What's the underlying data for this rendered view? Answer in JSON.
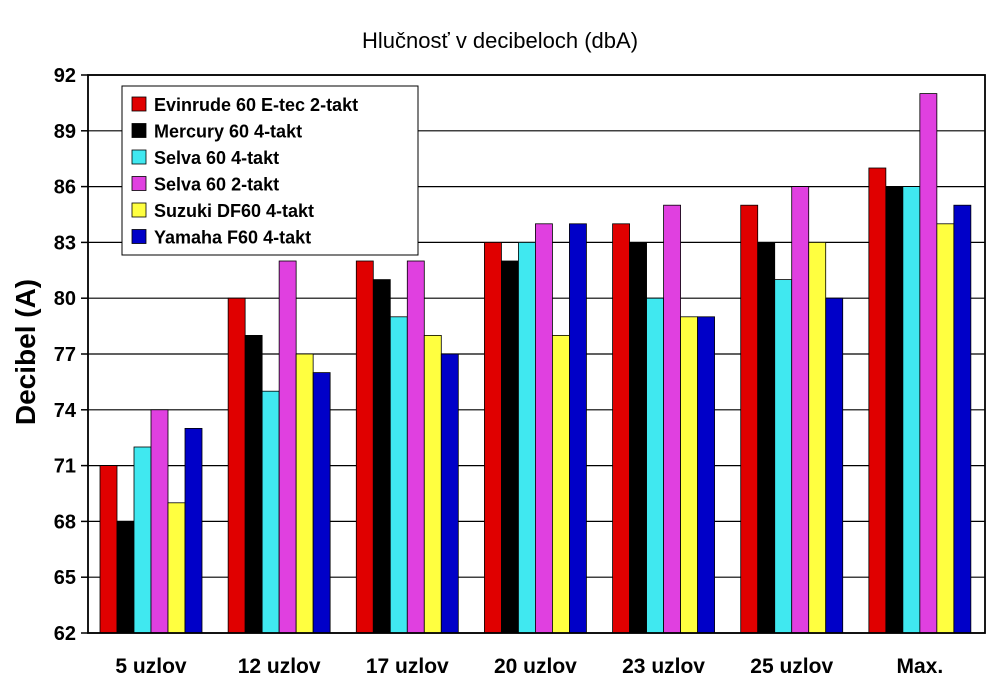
{
  "chart_data": {
    "type": "bar",
    "title": "Hlučnosť v decibeloch (dbA)",
    "ylabel": "Decibel (A)",
    "xlabel": "",
    "ylim": [
      62,
      92
    ],
    "yticks": [
      62,
      65,
      68,
      71,
      74,
      77,
      80,
      83,
      86,
      89,
      92
    ],
    "grid": "horizontal",
    "legend_position": "top-left",
    "categories": [
      "5 uzlov",
      "12 uzlov",
      "17 uzlov",
      "20 uzlov",
      "23 uzlov",
      "25 uzlov",
      "Max."
    ],
    "series": [
      {
        "name": "Evinrude 60 E-tec 2-takt",
        "color": "#e00000",
        "values": [
          71,
          80,
          82,
          83,
          84,
          85,
          87
        ]
      },
      {
        "name": "Mercury 60 4-takt",
        "color": "#000000",
        "values": [
          68,
          78,
          81,
          82,
          83,
          83,
          86
        ]
      },
      {
        "name": "Selva 60 4-takt",
        "color": "#40e8f0",
        "values": [
          72,
          75,
          79,
          83,
          80,
          81,
          86
        ]
      },
      {
        "name": "Selva 60 2-takt",
        "color": "#e040e0",
        "values": [
          74,
          82,
          82,
          84,
          85,
          86,
          91
        ]
      },
      {
        "name": "Suzuki DF60 4-takt",
        "color": "#ffff40",
        "values": [
          69,
          77,
          78,
          78,
          79,
          83,
          84
        ]
      },
      {
        "name": "Yamaha F60 4-takt",
        "color": "#0000c8",
        "values": [
          73,
          76,
          77,
          84,
          79,
          80,
          85
        ]
      }
    ]
  }
}
